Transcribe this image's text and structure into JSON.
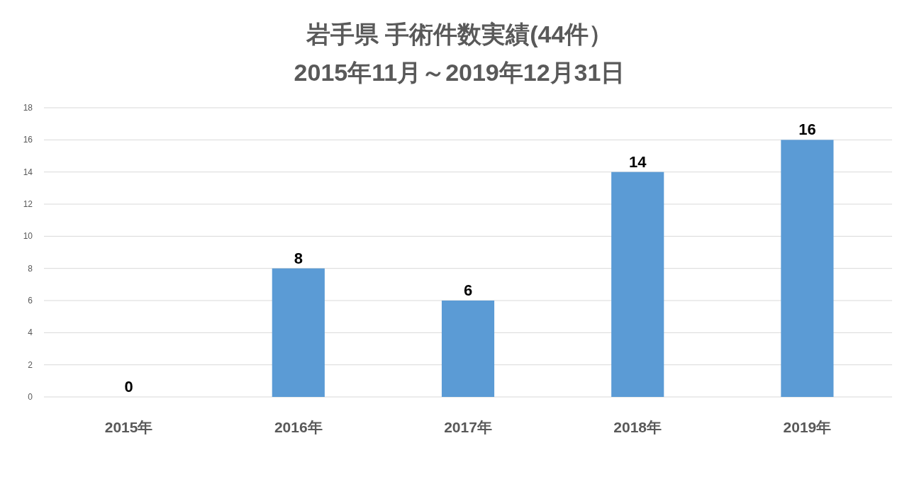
{
  "chart_data": {
    "type": "bar",
    "title": "岩手県 手術件数実績(44件）",
    "subtitle": "2015年11月～2019年12月31日",
    "categories": [
      "2015年",
      "2016年",
      "2017年",
      "2018年",
      "2019年"
    ],
    "values": [
      0,
      8,
      6,
      14,
      16
    ],
    "color": "#5b9bd5",
    "ylim": [
      0,
      18
    ],
    "yticks": [
      0,
      2,
      4,
      6,
      8,
      10,
      12,
      14,
      16,
      18
    ],
    "grid": "y",
    "data_labels": true
  }
}
